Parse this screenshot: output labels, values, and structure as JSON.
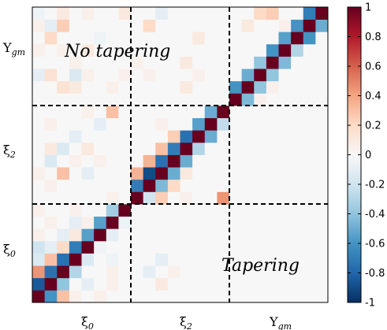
{
  "chart_data": {
    "type": "heatmap",
    "n": 24,
    "block_size": 8,
    "blocks": [
      {
        "name": "ξ",
        "sub": "0",
        "italic_sub": false
      },
      {
        "name": "ξ",
        "sub": "2",
        "italic_sub": false
      },
      {
        "name": "Υ",
        "sub": "gm",
        "italic_sub": true
      }
    ],
    "colorbar": {
      "vmin": -1,
      "vmax": 1,
      "ticks": [
        -1,
        -0.8,
        -0.6,
        -0.4,
        -0.2,
        0,
        0.2,
        0.4,
        0.6,
        0.8,
        1
      ],
      "tick_labels": [
        "-1",
        "-0.8",
        "-0.6",
        "-0.4",
        "-0.2",
        "0",
        "0.2",
        "0.4",
        "0.6",
        "0.8",
        "1"
      ],
      "colors": [
        "#053061",
        "#2166ac",
        "#4393c3",
        "#92c5de",
        "#d1e5f0",
        "#f7f7f7",
        "#fddbc7",
        "#f4a582",
        "#d6604d",
        "#b2182b",
        "#67001f"
      ]
    },
    "annotations": [
      {
        "text": "No tapering",
        "region": "upper-left"
      },
      {
        "text": "Tapering",
        "region": "lower-right"
      }
    ],
    "cells": [
      [
        1.0,
        -0.6,
        0.3,
        0.05,
        0.0,
        0.05,
        0.0,
        0.0,
        0.0,
        0.0,
        0.0,
        0.0,
        0.0,
        0.0,
        0.0,
        0.0,
        0.0,
        0.0,
        0.0,
        0.0,
        0.0,
        0.0,
        0.0,
        0.0
      ],
      [
        -0.85,
        1.0,
        -0.4,
        0.0,
        -0.1,
        0.0,
        0.05,
        0.0,
        0.0,
        0.0,
        0.1,
        0.0,
        0.0,
        0.0,
        0.0,
        0.0,
        0.0,
        0.0,
        0.0,
        0.0,
        0.0,
        0.0,
        0.0,
        0.0
      ],
      [
        0.45,
        -0.75,
        1.0,
        -0.3,
        0.0,
        0.0,
        0.05,
        0.0,
        0.0,
        -0.1,
        0.0,
        0.05,
        0.0,
        0.0,
        0.0,
        0.0,
        0.0,
        0.0,
        0.0,
        0.0,
        0.0,
        0.0,
        0.0,
        0.0
      ],
      [
        -0.15,
        0.3,
        -0.75,
        1.0,
        -0.15,
        0.0,
        -0.05,
        0.0,
        0.0,
        0.0,
        -0.1,
        0.0,
        0.0,
        0.0,
        0.0,
        0.0,
        0.0,
        0.0,
        0.0,
        0.0,
        0.0,
        0.0,
        0.0,
        0.0
      ],
      [
        -0.2,
        -0.1,
        0.2,
        -0.7,
        1.0,
        -0.05,
        0.0,
        0.0,
        0.0,
        0.0,
        0.0,
        0.0,
        0.0,
        0.0,
        0.0,
        0.0,
        0.0,
        0.0,
        0.0,
        0.0,
        0.0,
        0.0,
        0.0,
        0.0
      ],
      [
        0.05,
        0.0,
        -0.1,
        0.1,
        -0.55,
        1.0,
        -0.1,
        0.0,
        0.0,
        0.0,
        0.0,
        0.0,
        0.0,
        0.0,
        0.0,
        0.0,
        0.0,
        0.0,
        0.0,
        0.0,
        0.0,
        0.0,
        0.0,
        0.0
      ],
      [
        0.0,
        0.05,
        0.0,
        -0.1,
        0.05,
        -0.55,
        1.0,
        -0.05,
        0.0,
        0.0,
        0.0,
        0.0,
        0.0,
        0.0,
        0.0,
        0.0,
        0.0,
        0.0,
        0.0,
        0.0,
        0.0,
        0.0,
        0.0,
        0.0
      ],
      [
        0.05,
        0.0,
        0.0,
        0.05,
        0.0,
        0.0,
        -0.35,
        1.0,
        0.0,
        0.0,
        0.0,
        0.0,
        0.0,
        0.0,
        0.0,
        0.0,
        0.0,
        0.0,
        0.0,
        0.0,
        0.0,
        0.0,
        0.0,
        0.0
      ],
      [
        0.0,
        0.0,
        0.0,
        0.0,
        0.0,
        0.0,
        0.05,
        0.0,
        1.0,
        -0.2,
        0.25,
        0.0,
        0.05,
        0.0,
        0.0,
        0.45,
        0.0,
        0.0,
        0.0,
        0.0,
        0.0,
        0.0,
        0.0,
        0.0
      ],
      [
        0.0,
        0.05,
        0.0,
        0.0,
        0.0,
        0.0,
        0.0,
        0.0,
        -0.7,
        1.0,
        -0.45,
        0.2,
        0.0,
        0.0,
        0.0,
        0.0,
        0.0,
        0.0,
        0.0,
        0.0,
        0.0,
        0.0,
        0.0,
        0.0
      ],
      [
        0.05,
        0.0,
        0.3,
        0.0,
        -0.1,
        0.0,
        0.0,
        0.0,
        0.35,
        -0.9,
        1.0,
        -0.5,
        0.1,
        0.0,
        0.0,
        0.0,
        0.0,
        0.0,
        0.0,
        0.0,
        0.0,
        0.0,
        0.0,
        0.0
      ],
      [
        0.0,
        -0.15,
        0.0,
        0.05,
        0.0,
        0.05,
        0.0,
        0.0,
        0.0,
        0.35,
        -0.75,
        1.0,
        -0.5,
        0.0,
        0.0,
        0.0,
        0.0,
        0.0,
        0.0,
        0.0,
        0.0,
        0.0,
        0.0,
        0.0
      ],
      [
        0.0,
        0.1,
        -0.15,
        0.0,
        0.1,
        0.0,
        0.0,
        0.0,
        0.0,
        0.0,
        0.3,
        -0.7,
        1.0,
        -0.3,
        0.0,
        0.0,
        0.0,
        0.0,
        0.0,
        0.0,
        0.0,
        0.0,
        0.0,
        0.0
      ],
      [
        0.0,
        0.0,
        0.0,
        -0.1,
        0.0,
        0.0,
        0.0,
        0.0,
        0.0,
        0.0,
        0.0,
        0.25,
        -0.75,
        1.0,
        -0.5,
        0.0,
        0.0,
        0.0,
        0.0,
        0.0,
        0.0,
        0.0,
        0.0,
        0.0
      ],
      [
        0.0,
        0.05,
        0.0,
        0.0,
        0.0,
        -0.1,
        0.0,
        0.0,
        0.0,
        0.0,
        0.05,
        0.0,
        0.0,
        -0.55,
        1.0,
        -0.25,
        0.0,
        0.0,
        0.0,
        0.0,
        0.0,
        0.0,
        0.0,
        0.0
      ],
      [
        0.0,
        0.0,
        0.0,
        0.0,
        0.05,
        0.0,
        0.3,
        0.0,
        0.0,
        0.0,
        0.0,
        0.0,
        0.0,
        0.0,
        -0.5,
        1.0,
        0.0,
        0.0,
        0.0,
        0.0,
        0.0,
        0.0,
        0.0,
        0.0
      ],
      [
        0.0,
        0.0,
        0.0,
        0.0,
        0.0,
        0.0,
        0.0,
        0.0,
        0.0,
        0.0,
        0.0,
        0.0,
        0.0,
        0.0,
        0.0,
        0.0,
        1.0,
        -0.45,
        0.05,
        0.0,
        0.0,
        0.0,
        0.0,
        0.0
      ],
      [
        0.0,
        0.0,
        0.15,
        0.1,
        0.0,
        0.0,
        0.05,
        0.0,
        0.0,
        0.0,
        0.0,
        0.0,
        0.1,
        0.0,
        0.0,
        0.0,
        -0.6,
        1.0,
        -0.4,
        0.05,
        0.0,
        0.0,
        0.0,
        0.0
      ],
      [
        -0.1,
        0.15,
        0.0,
        -0.15,
        0.05,
        0.0,
        0.0,
        0.05,
        0.0,
        0.05,
        0.0,
        0.0,
        0.0,
        0.05,
        0.0,
        0.0,
        0.0,
        -0.5,
        1.0,
        -0.4,
        0.0,
        0.0,
        0.0,
        0.0
      ],
      [
        0.0,
        0.0,
        0.0,
        0.05,
        0.0,
        0.0,
        0.0,
        0.0,
        0.05,
        0.0,
        0.0,
        0.0,
        0.1,
        0.0,
        0.0,
        0.0,
        0.0,
        0.0,
        -0.4,
        1.0,
        -0.45,
        0.0,
        0.0,
        0.0
      ],
      [
        0.05,
        0.0,
        0.05,
        0.0,
        0.1,
        0.0,
        0.0,
        0.0,
        0.0,
        0.0,
        0.0,
        0.0,
        0.0,
        0.0,
        0.0,
        0.0,
        0.0,
        0.0,
        0.0,
        -0.6,
        1.0,
        -0.3,
        0.0,
        0.0
      ],
      [
        0.0,
        0.2,
        0.0,
        0.0,
        0.0,
        -0.05,
        0.0,
        0.0,
        0.0,
        0.0,
        0.0,
        0.0,
        0.0,
        0.1,
        0.0,
        0.0,
        0.0,
        0.0,
        0.0,
        0.0,
        -0.55,
        1.0,
        -0.6,
        0.0
      ],
      [
        0.05,
        -0.1,
        0.25,
        0.0,
        0.0,
        0.0,
        0.0,
        0.0,
        0.0,
        0.2,
        0.0,
        0.0,
        0.0,
        0.0,
        0.0,
        0.0,
        0.0,
        0.1,
        0.0,
        0.0,
        0.05,
        -0.6,
        1.0,
        -0.5
      ],
      [
        -0.05,
        0.0,
        0.1,
        0.0,
        0.05,
        0.0,
        0.0,
        0.1,
        0.0,
        0.0,
        -0.1,
        0.0,
        0.0,
        0.0,
        0.0,
        0.0,
        0.0,
        0.0,
        0.2,
        0.25,
        0.0,
        0.0,
        -0.7,
        1.0
      ]
    ]
  }
}
